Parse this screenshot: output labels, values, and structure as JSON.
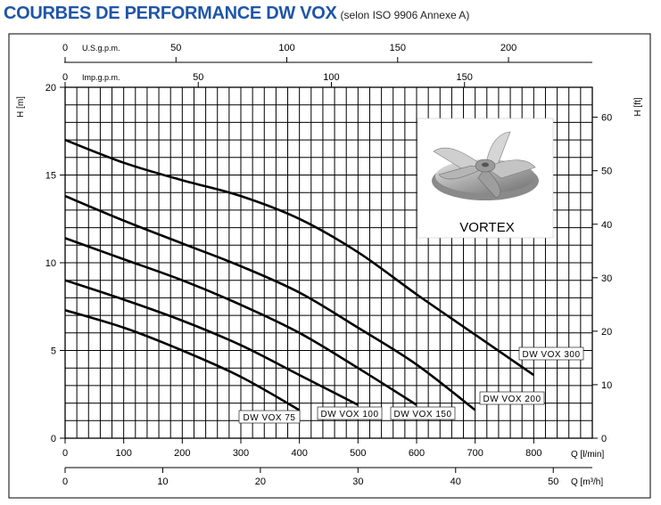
{
  "header": {
    "title": "COURBES DE PERFORMANCE DW VOX",
    "subtitle": "(selon ISO 9906 Annexe A)"
  },
  "colors": {
    "title": "#1f56a8",
    "grid": "#000000",
    "curve": "#000000"
  },
  "image_label": "VORTEX",
  "chart_data": {
    "type": "line",
    "grid": true,
    "y_left": {
      "label": "H [m]",
      "range": [
        0,
        20
      ],
      "ticks": [
        0,
        5,
        10,
        15,
        20
      ]
    },
    "y_right": {
      "label": "H [ft]",
      "range": [
        0,
        65.6
      ],
      "ticks": [
        0,
        10,
        20,
        30,
        40,
        50,
        60
      ]
    },
    "x_lpm": {
      "label": "Q [l/min]",
      "range": [
        0,
        900
      ],
      "ticks": [
        0,
        100,
        200,
        300,
        400,
        500,
        600,
        700,
        800
      ]
    },
    "x_m3h": {
      "label": "Q [m³/h]",
      "range": [
        0,
        54
      ],
      "ticks": [
        0,
        10,
        20,
        30,
        40,
        50
      ]
    },
    "x_usgpm": {
      "label": "U.S.g.p.m.",
      "range": [
        0,
        237.8
      ],
      "ticks": [
        0,
        50,
        100,
        150,
        200
      ]
    },
    "x_impgpm": {
      "label": "Imp.g.p.m.",
      "range": [
        0,
        198
      ],
      "ticks": [
        0,
        50,
        100,
        150
      ]
    },
    "series": [
      {
        "name": "DW VOX 75",
        "x": [
          0,
          100,
          200,
          300,
          400
        ],
        "y": [
          7.3,
          6.3,
          5.0,
          3.5,
          1.6
        ]
      },
      {
        "name": "DW VOX 100",
        "x": [
          0,
          100,
          200,
          300,
          400,
          500
        ],
        "y": [
          9.0,
          7.9,
          6.7,
          5.3,
          3.6,
          1.9
        ]
      },
      {
        "name": "DW VOX 150",
        "x": [
          0,
          100,
          200,
          300,
          400,
          500,
          600
        ],
        "y": [
          11.4,
          10.2,
          9.0,
          7.6,
          6.0,
          4.0,
          1.9
        ]
      },
      {
        "name": "DW VOX 200",
        "x": [
          0,
          100,
          200,
          300,
          400,
          500,
          600,
          700
        ],
        "y": [
          13.8,
          12.4,
          11.1,
          9.8,
          8.3,
          6.3,
          4.2,
          1.6
        ]
      },
      {
        "name": "DW VOX 300",
        "x": [
          0,
          100,
          200,
          300,
          400,
          500,
          600,
          700,
          800
        ],
        "y": [
          17.0,
          15.7,
          14.7,
          13.8,
          12.5,
          10.6,
          8.2,
          5.9,
          3.6
        ]
      }
    ]
  }
}
